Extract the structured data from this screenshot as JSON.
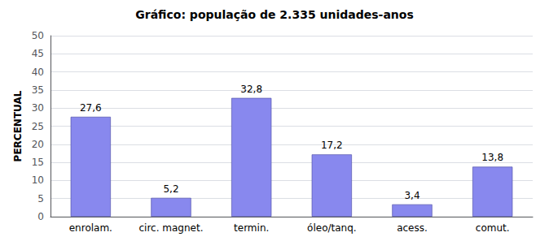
{
  "chart_data": {
    "type": "bar",
    "title": "Gráfico: população de 2.335 unidades-anos",
    "ylabel": "PERCENTUAL",
    "categories": [
      "enrolam.",
      "circ. magnet.",
      "termin.",
      "óleo/tanq.",
      "acess.",
      "comut."
    ],
    "values": [
      27.6,
      5.2,
      32.8,
      17.2,
      3.4,
      13.8
    ],
    "value_labels": [
      "27,6",
      "5,2",
      "32,8",
      "17,2",
      "3,4",
      "13,8"
    ],
    "data_labels": true,
    "color": "#8888ee",
    "ylim": [
      0,
      50
    ],
    "yticks": [
      0,
      5,
      10,
      15,
      20,
      25,
      30,
      35,
      40,
      45,
      50
    ],
    "grid": true
  }
}
